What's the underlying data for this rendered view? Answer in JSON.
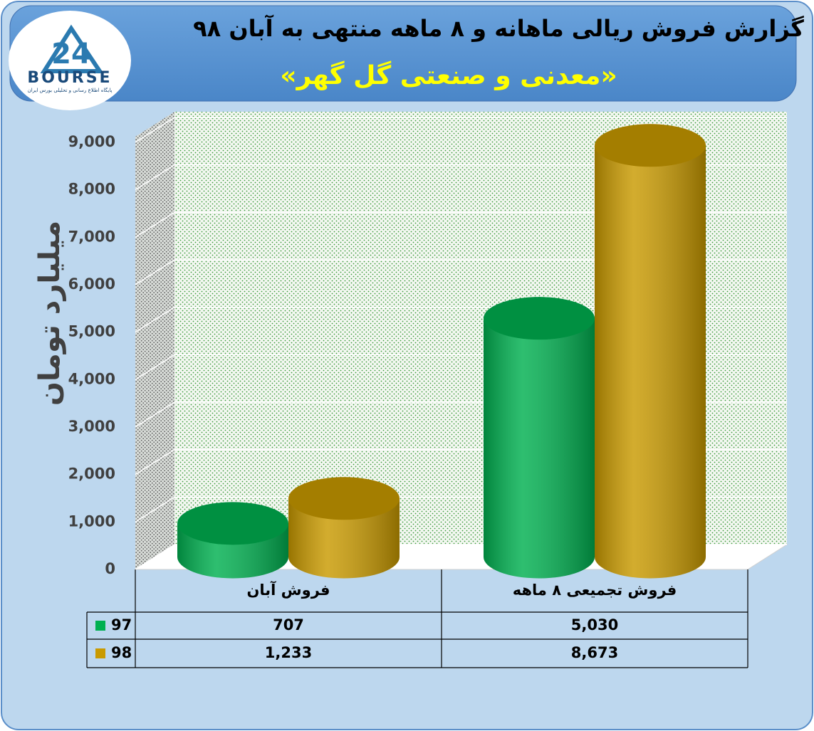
{
  "logo": {
    "number": "24",
    "text": "BOURSE",
    "caption": "پایگاه اطلاع رسانی و تحلیلی بورس ایران"
  },
  "chart_data": {
    "type": "bar",
    "title": "گزارش فروش ریالی ماهانه و ۸ ماهه منتهی به آبان ۹۸",
    "subtitle": "«معدنی و صنعتی گل گهر»",
    "y_label": "میلیارد تومان",
    "categories": [
      "فروش آبان",
      "فروش تجمیعی ۸ ماهه"
    ],
    "series": [
      {
        "name": "97",
        "color": "#00b050",
        "values": [
          707,
          5030
        ],
        "value_labels": [
          "707",
          "5,030"
        ]
      },
      {
        "name": "98",
        "color": "#c99a00",
        "values": [
          1233,
          8673
        ],
        "value_labels": [
          "1,233",
          "8,673"
        ]
      }
    ],
    "ylim": [
      0,
      9000
    ],
    "yticks": [
      0,
      {
        "value": 1000,
        "label": "1,000"
      },
      {
        "value": 2000,
        "label": "2,000"
      },
      {
        "value": 3000,
        "label": "3,000"
      },
      {
        "value": 4000,
        "label": "4,000"
      },
      {
        "value": 5000,
        "label": "5,000"
      },
      {
        "value": 6000,
        "label": "6,000"
      },
      {
        "value": 7000,
        "label": "7,000"
      },
      {
        "value": 8000,
        "label": "8,000"
      },
      {
        "value": 9000,
        "label": "9,000"
      }
    ],
    "grid": true
  }
}
